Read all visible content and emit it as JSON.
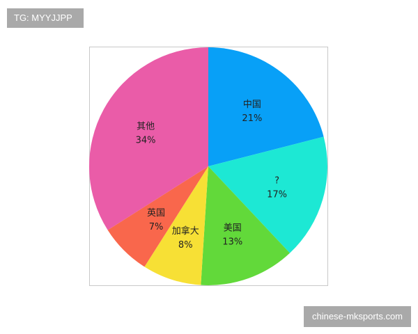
{
  "watermarks": {
    "top_left": "TG: MYYJJPP",
    "bottom_right": "chinese-mksports.com"
  },
  "chart_data": {
    "type": "pie",
    "start": "top",
    "direction": "clockwise",
    "slices": [
      {
        "label": "中国",
        "value": 21,
        "display": "21%",
        "color": "#08a0f7"
      },
      {
        "label": "?",
        "value": 17,
        "display": "17%",
        "color": "#1de8d4"
      },
      {
        "label": "美国",
        "value": 13,
        "display": "13%",
        "color": "#62d93a"
      },
      {
        "label": "加拿大",
        "value": 8,
        "display": "8%",
        "color": "#f7e035"
      },
      {
        "label": "英国",
        "value": 7,
        "display": "7%",
        "color": "#f9674c"
      },
      {
        "label": "其他",
        "value": 34,
        "display": "34%",
        "color": "#ea5ca8"
      }
    ]
  }
}
